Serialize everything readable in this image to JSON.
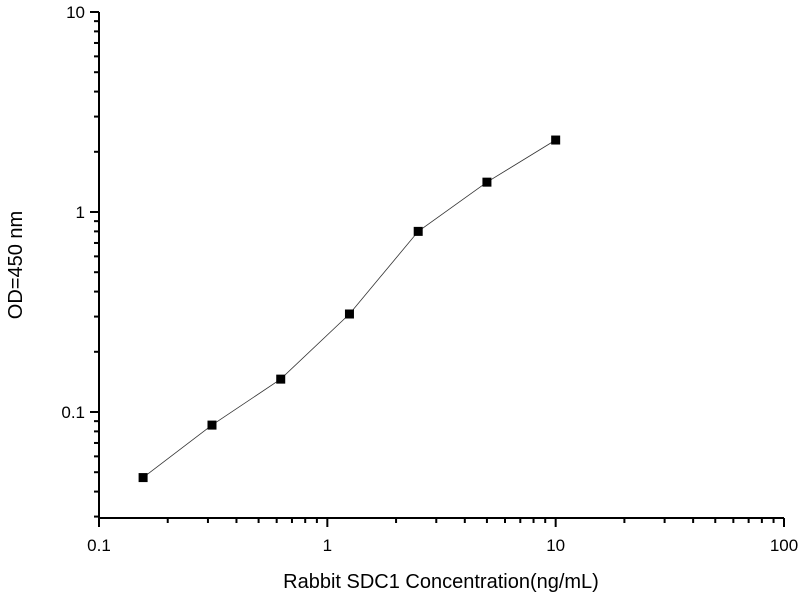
{
  "chart_data": {
    "type": "line",
    "title": "",
    "xlabel": "Rabbit SDC1 Concentration(ng/mL)",
    "ylabel": "OD=450 nm",
    "x_scale": "log",
    "y_scale": "log",
    "xlim": [
      0.1,
      100
    ],
    "ylim": [
      0.03,
      10
    ],
    "x_ticks": [
      "0.1",
      "1",
      "10",
      "100"
    ],
    "y_ticks": [
      "0.1",
      "1",
      "10"
    ],
    "grid": false,
    "marker": "square",
    "color": "#000000",
    "series": [
      {
        "x": [
          0.156,
          0.3125,
          0.625,
          1.25,
          2.5,
          5,
          10
        ],
        "y": [
          0.047,
          0.086,
          0.146,
          0.309,
          0.8,
          1.41,
          2.29
        ]
      }
    ]
  }
}
